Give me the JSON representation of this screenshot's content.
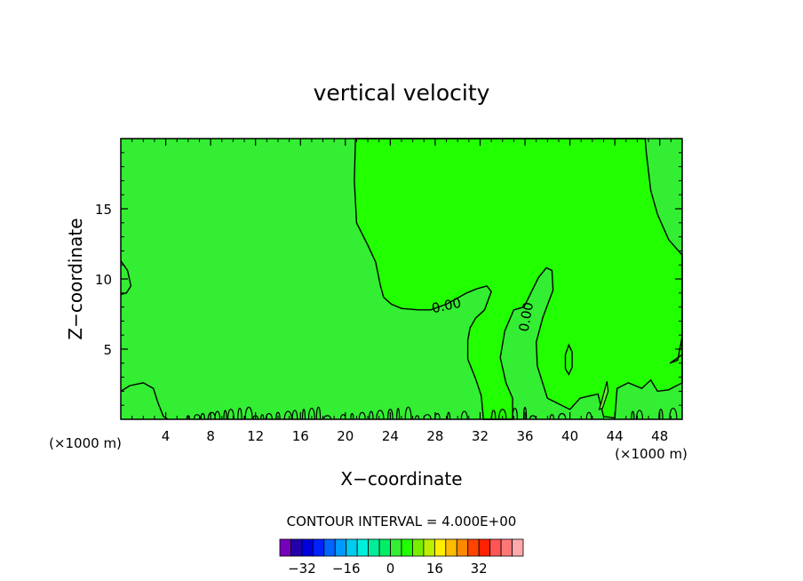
{
  "chart_data": {
    "type": "contour",
    "title": "vertical velocity",
    "xlabel": "X−coordinate",
    "ylabel": "Z−coordinate",
    "x_unit_left": "(×1000 m)",
    "x_unit_right": "(×1000 m)",
    "xlim": [
      0,
      50
    ],
    "ylim": [
      0,
      20
    ],
    "x_ticks": [
      4,
      8,
      12,
      16,
      20,
      24,
      28,
      32,
      36,
      40,
      44,
      48
    ],
    "x_tick_labels": [
      "4",
      "8",
      "12",
      "16",
      "20",
      "24",
      "28",
      "32",
      "36",
      "40",
      "44",
      "48"
    ],
    "y_ticks": [
      5,
      10,
      15
    ],
    "y_tick_labels": [
      "5",
      "10",
      "15"
    ],
    "contour_interval_label": "CONTOUR INTERVAL = 4.000E+00",
    "contour_labels": [
      "0.00",
      "0.00"
    ],
    "fill_colors": {
      "background_band": "#33ee33",
      "positive_band": "#22ff00",
      "small_cell": "#77ee33"
    },
    "colorbar": {
      "tick_values": [
        -32,
        -16,
        0,
        16,
        32
      ],
      "tick_labels": [
        "−32",
        "−16",
        "0",
        "16",
        "32"
      ],
      "levels_min": -40,
      "levels_step": 4,
      "colors": [
        "#7700bb",
        "#2200aa",
        "#0000dd",
        "#0022ff",
        "#0066ff",
        "#0099ff",
        "#00ccee",
        "#00eedd",
        "#00ee99",
        "#00ee66",
        "#33ee33",
        "#22ff00",
        "#77ee00",
        "#bbee00",
        "#ffee00",
        "#ffbb00",
        "#ff8800",
        "#ff4400",
        "#ff2200",
        "#ff5555",
        "#ff7777",
        "#ffaaaa"
      ]
    }
  }
}
